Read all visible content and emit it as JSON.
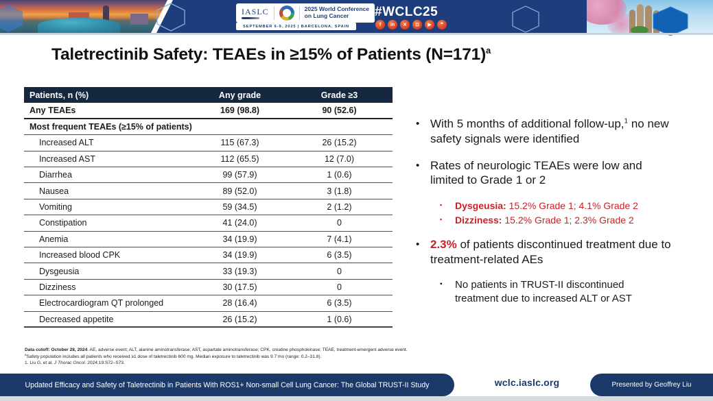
{
  "header": {
    "logo_text": "IASLC",
    "conference_name_line1": "2025 World Conference",
    "conference_name_line2": "on Lung Cancer",
    "conference_dates": "SEPTEMBER 6-9, 2025  |  BARCELONA, SPAIN",
    "hashtag": "#WCLC25",
    "social_icons": [
      {
        "name": "facebook-icon",
        "glyph": "f"
      },
      {
        "name": "linkedin-icon",
        "glyph": "in"
      },
      {
        "name": "x-icon",
        "glyph": "✕"
      },
      {
        "name": "instagram-icon",
        "glyph": "⊡"
      },
      {
        "name": "youtube-icon",
        "glyph": "▶"
      },
      {
        "name": "chat-icon",
        "glyph": "❞"
      }
    ]
  },
  "slide": {
    "title": "Taletrectinib Safety: TEAEs in ≥15% of Patients (N=171)",
    "title_superscript": "a"
  },
  "table": {
    "headers": [
      "Patients, n (%)",
      "Any grade",
      "Grade ≥3"
    ],
    "rows": [
      {
        "label": "Any TEAEs",
        "any_grade": "169 (98.8)",
        "grade_ge3": "90 (52.6)",
        "style": "bold"
      },
      {
        "label": "Most frequent TEAEs (≥15% of patients)",
        "any_grade": "",
        "grade_ge3": "",
        "style": "section"
      },
      {
        "label": "Increased ALT",
        "any_grade": "115 (67.3)",
        "grade_ge3": "26 (15.2)",
        "style": "item"
      },
      {
        "label": "Increased AST",
        "any_grade": "112 (65.5)",
        "grade_ge3": "12 (7.0)",
        "style": "item"
      },
      {
        "label": "Diarrhea",
        "any_grade": "99 (57.9)",
        "grade_ge3": "1 (0.6)",
        "style": "item"
      },
      {
        "label": "Nausea",
        "any_grade": "89 (52.0)",
        "grade_ge3": "3 (1.8)",
        "style": "item"
      },
      {
        "label": "Vomiting",
        "any_grade": "59 (34.5)",
        "grade_ge3": "2 (1.2)",
        "style": "item"
      },
      {
        "label": "Constipation",
        "any_grade": "41 (24.0)",
        "grade_ge3": "0",
        "style": "item"
      },
      {
        "label": "Anemia",
        "any_grade": "34 (19.9)",
        "grade_ge3": "7 (4.1)",
        "style": "item"
      },
      {
        "label": "Increased blood CPK",
        "any_grade": "34 (19.9)",
        "grade_ge3": "6 (3.5)",
        "style": "item"
      },
      {
        "label": "Dysgeusia",
        "any_grade": "33 (19.3)",
        "grade_ge3": "0",
        "style": "item"
      },
      {
        "label": "Dizziness",
        "any_grade": "30 (17.5)",
        "grade_ge3": "0",
        "style": "item"
      },
      {
        "label": "Electrocardiogram QT prolonged",
        "any_grade": "28 (16.4)",
        "grade_ge3": "6 (3.5)",
        "style": "item"
      },
      {
        "label": "Decreased appetite",
        "any_grade": "26 (15.2)",
        "grade_ge3": "1 (0.6)",
        "style": "item"
      }
    ]
  },
  "bullets": [
    {
      "level": 1,
      "mark": "dot-black",
      "gap": "none",
      "segments": [
        {
          "text": "With 5 months of additional follow-up,",
          "style": "normal"
        },
        {
          "text": "1",
          "style": "sup"
        },
        {
          "text": " no new safety signals were identified",
          "style": "normal"
        }
      ]
    },
    {
      "level": 1,
      "mark": "dot-black",
      "gap": "none",
      "segments": [
        {
          "text": "Rates of neurologic TEAEs were low and limited to Grade 1 or 2",
          "style": "normal"
        }
      ]
    },
    {
      "level": 2,
      "mark": "square-red",
      "gap": "none",
      "segments": [
        {
          "text": "Dysgeusia:",
          "style": "red-bold"
        },
        {
          "text": " 15.2% Grade 1; 4.1% Grade 2",
          "style": "red"
        }
      ]
    },
    {
      "level": 2,
      "mark": "square-red",
      "gap": "none",
      "segments": [
        {
          "text": "Dizziness:",
          "style": "red-bold"
        },
        {
          "text": " 15.2% Grade 1; 2.3% Grade 2",
          "style": "red"
        }
      ]
    },
    {
      "level": 1,
      "mark": "dot-red",
      "gap": "before",
      "segments": [
        {
          "text": "2.3%",
          "style": "red-bold"
        },
        {
          "text": " of patients discontinued treatment due to treatment-related AEs",
          "style": "normal"
        }
      ]
    },
    {
      "level": 2,
      "mark": "square-black",
      "gap": "small",
      "segments": [
        {
          "text": "No patients in TRUST-II discontinued treatment due to increased ALT or AST",
          "style": "normal"
        }
      ]
    }
  ],
  "footnotes": [
    [
      {
        "text": "Data cutoff: October 28, 2024",
        "style": "bold"
      },
      {
        "text": ". AE, adverse event; ALT, alanine aminotransferase; AST, aspartate aminotransferase; CPK, creatine phosphokinase; TEAE, treatment-emergent adverse event.",
        "style": "normal"
      }
    ],
    [
      {
        "text": "a",
        "style": "sup"
      },
      {
        "text": "Safety population includes all patients who received ≥1 dose of taletrectinib 600 mg. Median exposure to taletrectinib was 9.7 mo (range: 0.2–31.8).",
        "style": "normal"
      }
    ],
    [
      {
        "text": "1. Liu G, et al. ",
        "style": "normal"
      },
      {
        "text": "J Thorac Oncol",
        "style": "italic"
      },
      {
        "text": ". 2024;19:S72–S73.",
        "style": "normal"
      }
    ]
  ],
  "footer": {
    "study_title": "Updated Efficacy and Safety of Taletrectinib in Patients With ROS1+ Non-small Cell Lung Cancer: The Global TRUST-II Study",
    "website": "wclc.iaslc.org",
    "presenter": "Presented by Geoffrey Liu"
  },
  "colors": {
    "banner_navy": "#1e3d7d",
    "table_header_navy": "#16283f",
    "footer_navy": "#1c3a69",
    "accent_red": "#cb2026"
  }
}
